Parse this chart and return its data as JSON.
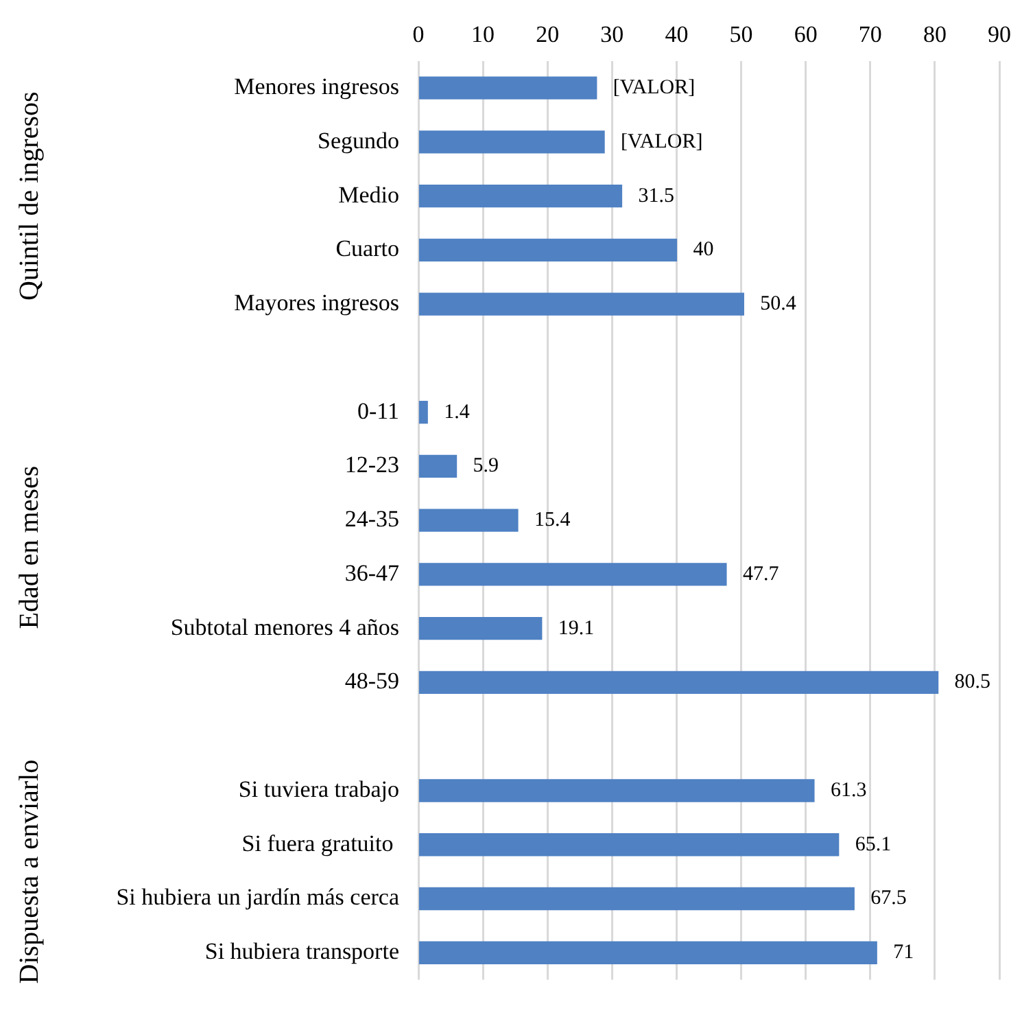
{
  "chart_data": {
    "type": "bar",
    "orientation": "horizontal",
    "categories": [
      "Menores ingresos",
      "Segundo",
      "Medio",
      "Cuarto",
      "Mayores ingresos",
      null,
      "0-11",
      "12-23",
      "24-35",
      "36-47",
      "Subtotal menores 4 años",
      "48-59",
      null,
      "Si tuviera trabajo",
      "Si fuera gratuito ",
      "Si hubiera un jardín más cerca",
      "Si hubiera transporte"
    ],
    "values": [
      27.6,
      28.8,
      31.5,
      40,
      50.4,
      null,
      1.4,
      5.9,
      15.4,
      47.7,
      19.1,
      80.5,
      null,
      61.3,
      65.1,
      67.5,
      71
    ],
    "value_labels": [
      "[VALOR]",
      "[VALOR]",
      "31.5",
      "40",
      "50.4",
      null,
      "1.4",
      "5.9",
      "15.4",
      "47.7",
      "19.1",
      "80.5",
      null,
      "61.3",
      "65.1",
      "67.5",
      "71"
    ],
    "color": "#4f81c3",
    "xlim": [
      0,
      90
    ],
    "xticks": [
      0,
      10,
      20,
      30,
      40,
      50,
      60,
      70,
      80,
      90
    ],
    "grid": "x",
    "legend": false,
    "annotations": [
      "Quintil de ingresos",
      "Edad en meses",
      "Dispuesta a enviarlo"
    ]
  }
}
